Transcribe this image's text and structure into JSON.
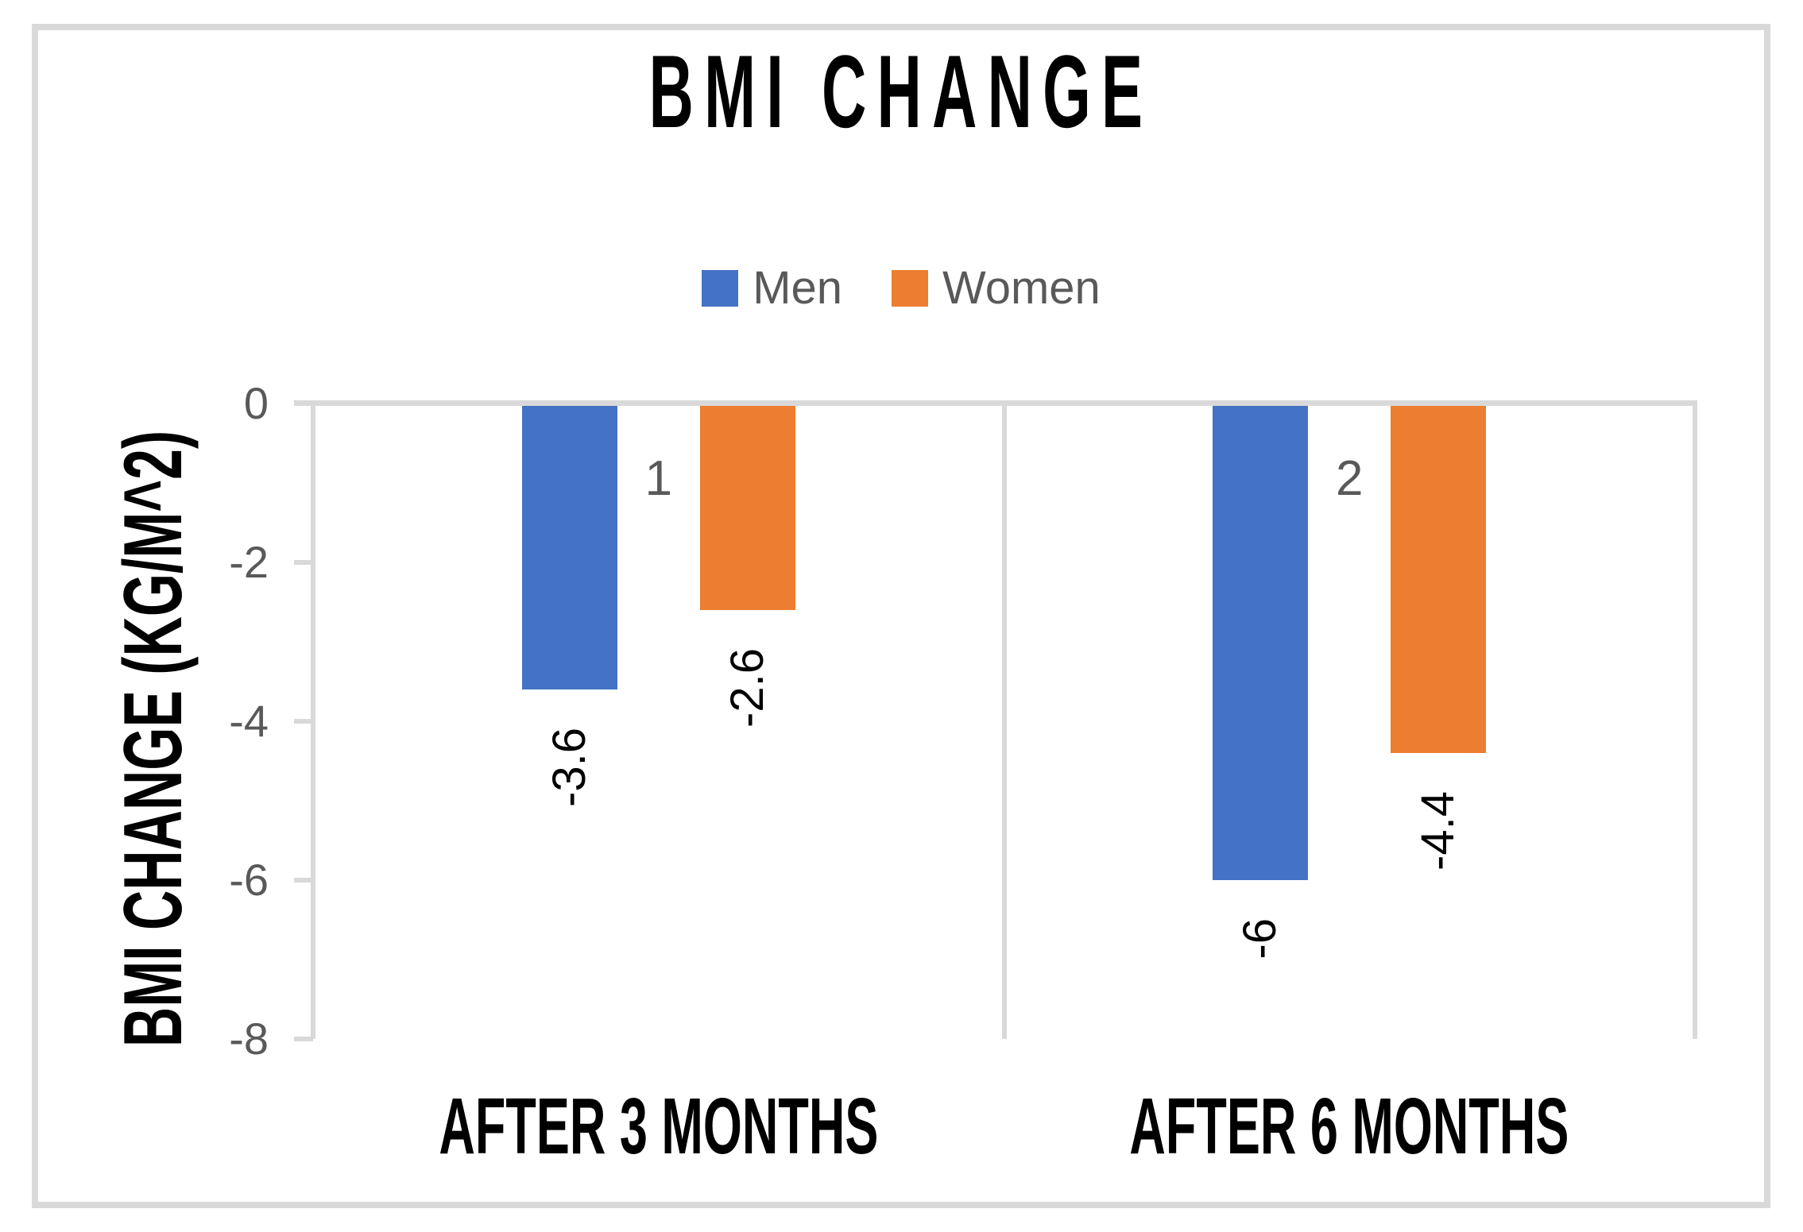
{
  "title": "BMI CHANGE",
  "legend": [
    {
      "label": "Men",
      "color": "#4472C4"
    },
    {
      "label": "Women",
      "color": "#ED7D31"
    }
  ],
  "y_axis": {
    "title": "BMI CHANGE (KG/M^2)",
    "tick_labels": [
      "0",
      "-2",
      "-4",
      "-6",
      "-8"
    ],
    "tick_values": [
      0,
      -2,
      -4,
      -6,
      -8
    ]
  },
  "categories": [
    "AFTER 3 MONTHS",
    "AFTER 6 MONTHS"
  ],
  "chart_data": {
    "type": "bar",
    "title": "BMI CHANGE",
    "categories": [
      "AFTER 3 MONTHS",
      "AFTER 6 MONTHS"
    ],
    "series": [
      {
        "name": "Men",
        "color": "#4472C4",
        "values": [
          -3.6,
          -6
        ],
        "labels": [
          "-3.6",
          "-6"
        ]
      },
      {
        "name": "Women",
        "color": "#ED7D31",
        "values": [
          -2.6,
          -4.4
        ],
        "labels": [
          "-2.6",
          "-4.4"
        ]
      }
    ],
    "annotations": [
      {
        "text": "1",
        "category_index": 0
      },
      {
        "text": "2",
        "category_index": 1
      }
    ],
    "xlabel": "",
    "ylabel": "BMI CHANGE (KG/M^2)",
    "ylim": [
      -8,
      0
    ],
    "yticks": [
      0,
      -2,
      -4,
      -6,
      -8
    ],
    "grid": "zero-line-and-category-separators",
    "legend_position": "top-center",
    "data_label_rotation": -90
  },
  "colors": {
    "axis_line": "#d9d9d9",
    "frame_border": "#d9d9d9",
    "text_gray": "#595959",
    "text_black": "#000000",
    "background": "#ffffff"
  }
}
